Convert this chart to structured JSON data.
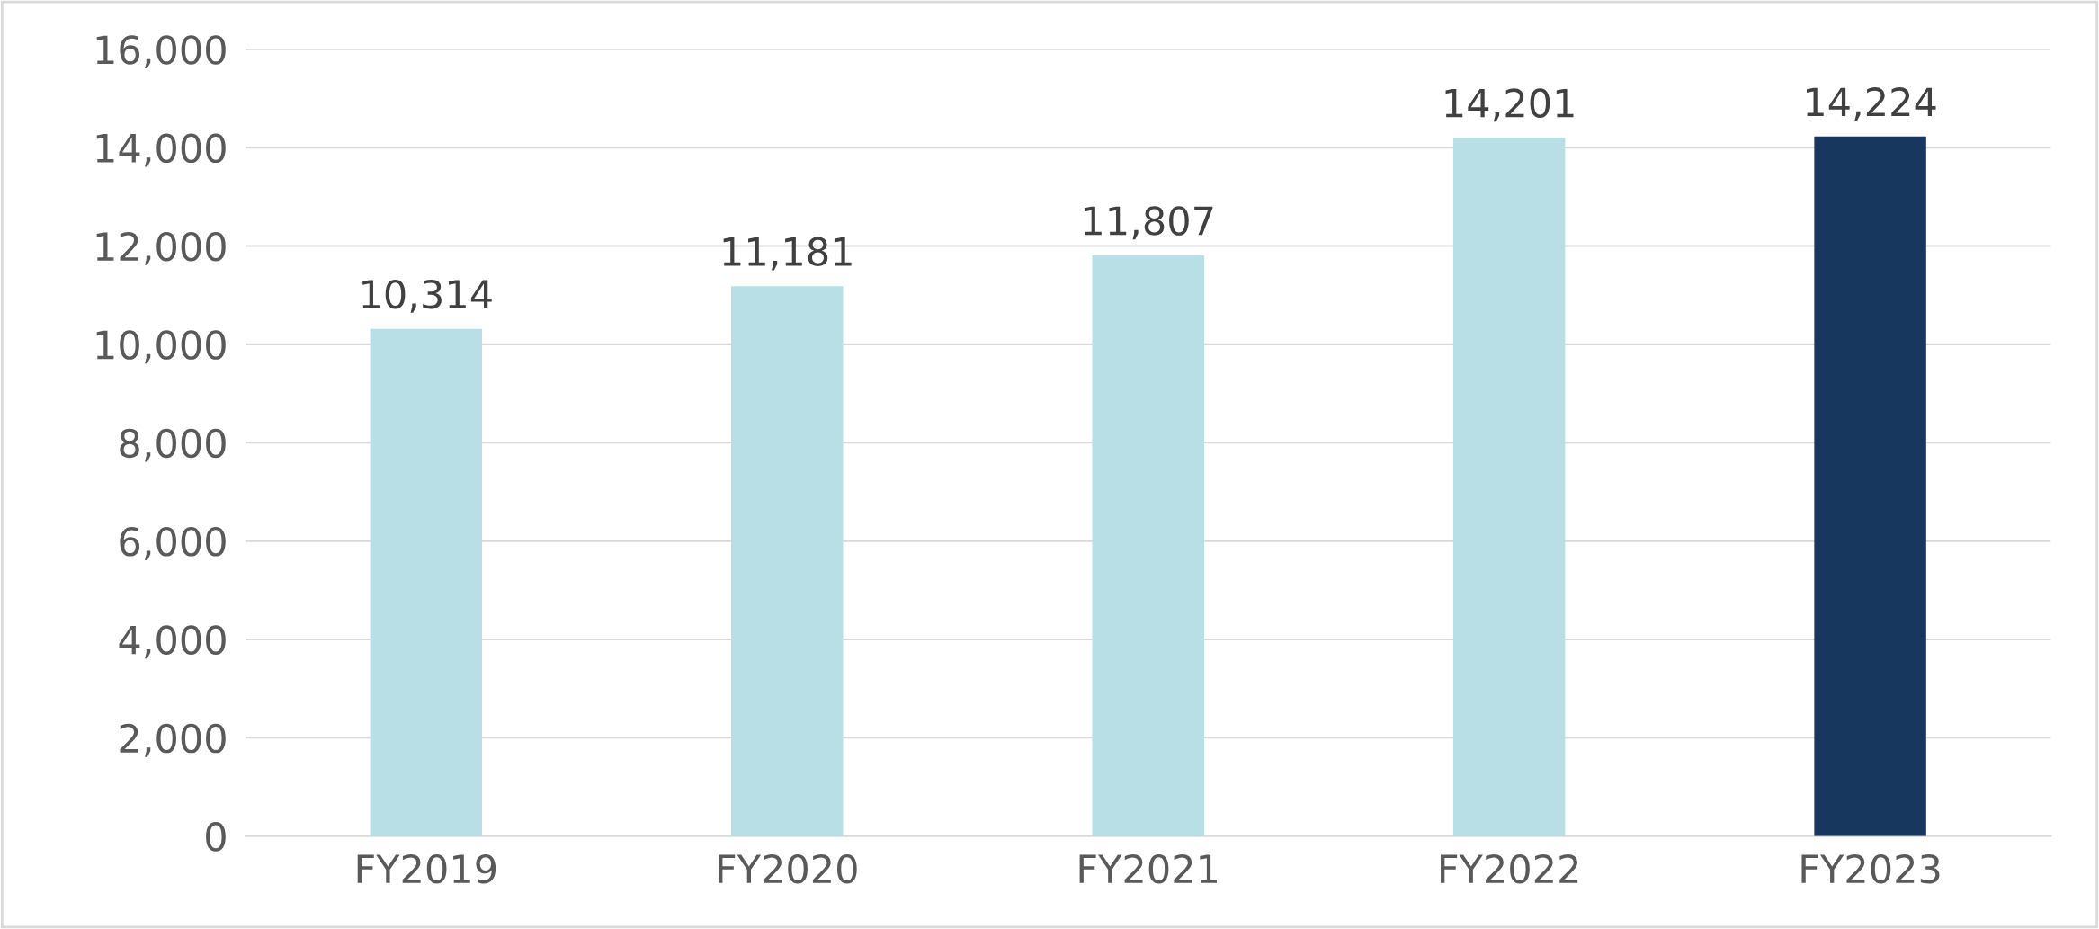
{
  "chart_data": {
    "type": "bar",
    "categories": [
      "FY2019",
      "FY2020",
      "FY2021",
      "FY2022",
      "FY2023"
    ],
    "values": [
      10314,
      11181,
      11807,
      14201,
      14224
    ],
    "colors": [
      "#b7dfe5",
      "#b7dfe5",
      "#b7dfe5",
      "#b7dfe5",
      "#17375e"
    ],
    "value_labels": [
      "10,314",
      "11,181",
      "11,807",
      "14,201",
      "14,224"
    ],
    "ylim": [
      0,
      16000
    ],
    "yticks": [
      {
        "value": 0,
        "label": "0"
      },
      {
        "value": 2000,
        "label": "2,000"
      },
      {
        "value": 4000,
        "label": "4,000"
      },
      {
        "value": 6000,
        "label": "6,000"
      },
      {
        "value": 8000,
        "label": "8,000"
      },
      {
        "value": 10000,
        "label": "10,000"
      },
      {
        "value": 12000,
        "label": "12,000"
      },
      {
        "value": 14000,
        "label": "14,000"
      },
      {
        "value": 16000,
        "label": "16,000"
      }
    ],
    "grid": "y",
    "legend": false
  }
}
